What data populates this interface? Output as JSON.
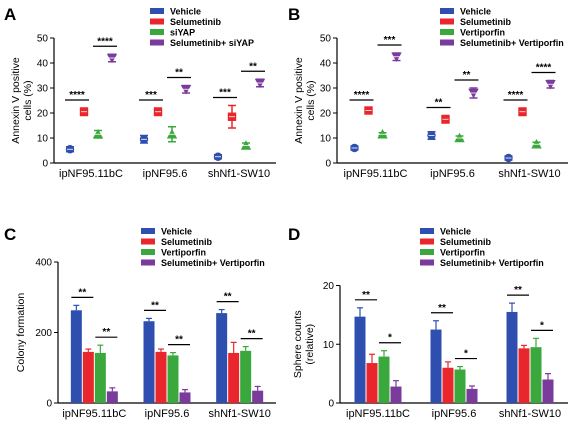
{
  "colors": {
    "Vehicle": "#2e4fb0",
    "Selumetinib": "#e8262c",
    "siYAP": "#3aa83c",
    "Vertiporfin": "#3aa83c",
    "Selumetinib+ siYAP": "#7a3b9c",
    "Selumetinib+ Vertiporfin": "#7a3b9c"
  },
  "chart_data": [
    {
      "panel": "A",
      "type": "scatter",
      "ylabel": "Annexin V positive cells (%)",
      "yticks": [
        0,
        10,
        20,
        30,
        40,
        50
      ],
      "ylim": [
        0,
        50
      ],
      "categories": [
        "ipNF95.11bC",
        "ipNF95.6",
        "shNf1-SW10"
      ],
      "legend": {
        "placement": "top",
        "entries": [
          "Vehicle",
          "Selumetinib",
          "siYAP",
          "Selumetinib+ siYAP"
        ]
      },
      "series": [
        {
          "name": "Vehicle",
          "marker": "circle",
          "values": [
            5.5,
            9.5,
            2.5
          ],
          "err": [
            1.0,
            1.5,
            0.8
          ]
        },
        {
          "name": "Selumetinib",
          "marker": "square",
          "values": [
            20.5,
            20.5,
            18.5
          ],
          "err": [
            1.5,
            1.5,
            4.5
          ]
        },
        {
          "name": "siYAP",
          "marker": "triangle-up",
          "values": [
            11.5,
            11.5,
            7.0
          ],
          "err": [
            1.5,
            3.0,
            1.0
          ]
        },
        {
          "name": "Selumetinib+ siYAP",
          "marker": "triangle-down",
          "values": [
            42.0,
            29.5,
            32.0
          ],
          "err": [
            1.5,
            1.5,
            1.5
          ]
        }
      ],
      "significance": [
        {
          "cat": 0,
          "pair": [
            0,
            1
          ],
          "label": "****"
        },
        {
          "cat": 0,
          "pair": [
            2,
            3
          ],
          "label": "****"
        },
        {
          "cat": 1,
          "pair": [
            0,
            1
          ],
          "label": "***"
        },
        {
          "cat": 1,
          "pair": [
            2,
            3
          ],
          "label": "**"
        },
        {
          "cat": 2,
          "pair": [
            0,
            1
          ],
          "label": "***"
        },
        {
          "cat": 2,
          "pair": [
            2,
            3
          ],
          "label": "**"
        }
      ]
    },
    {
      "panel": "B",
      "type": "scatter",
      "ylabel": "Annexin V positive cells (%)",
      "yticks": [
        0,
        10,
        20,
        30,
        40,
        50
      ],
      "ylim": [
        0,
        50
      ],
      "categories": [
        "ipNF95.11bC",
        "ipNF95.6",
        "shNf1-SW10"
      ],
      "legend": {
        "placement": "top",
        "entries": [
          "Vehicle",
          "Selumetinib",
          "Vertiporfin",
          "Selumetinib+ Vertiporfin"
        ]
      },
      "series": [
        {
          "name": "Vehicle",
          "marker": "circle",
          "values": [
            6.0,
            11.0,
            2.0
          ],
          "err": [
            0.8,
            1.5,
            0.8
          ]
        },
        {
          "name": "Selumetinib",
          "marker": "square",
          "values": [
            21.0,
            17.5,
            20.5
          ],
          "err": [
            1.0,
            1.5,
            1.5
          ]
        },
        {
          "name": "Vertiporfin",
          "marker": "triangle-up",
          "values": [
            11.5,
            10.0,
            7.5
          ],
          "err": [
            0.6,
            0.8,
            0.8
          ]
        },
        {
          "name": "Selumetinib+ Vertiporfin",
          "marker": "triangle-down",
          "values": [
            42.5,
            28.0,
            31.5
          ],
          "err": [
            1.5,
            2.0,
            1.5
          ]
        }
      ],
      "significance": [
        {
          "cat": 0,
          "pair": [
            0,
            1
          ],
          "label": "****"
        },
        {
          "cat": 0,
          "pair": [
            2,
            3
          ],
          "label": "***"
        },
        {
          "cat": 1,
          "pair": [
            0,
            1
          ],
          "label": "**"
        },
        {
          "cat": 1,
          "pair": [
            2,
            3
          ],
          "label": "**"
        },
        {
          "cat": 2,
          "pair": [
            0,
            1
          ],
          "label": "****"
        },
        {
          "cat": 2,
          "pair": [
            2,
            3
          ],
          "label": "****"
        }
      ]
    },
    {
      "panel": "C",
      "type": "bar",
      "ylabel": "Colony formation",
      "yticks": [
        0,
        200,
        400
      ],
      "ylim": [
        0,
        400
      ],
      "categories": [
        "ipNF95.11bC",
        "ipNF95.6",
        "shNf1-SW10"
      ],
      "legend": {
        "placement": "top",
        "entries": [
          "Vehicle",
          "Selumetinib",
          "Vertiporfin",
          "Selumetinib+ Vertiporfin"
        ]
      },
      "series": [
        {
          "name": "Vehicle",
          "values": [
            263,
            232,
            255
          ],
          "err": [
            14,
            8,
            10
          ]
        },
        {
          "name": "Selumetinib",
          "values": [
            145,
            145,
            142
          ],
          "err": [
            8,
            8,
            30
          ]
        },
        {
          "name": "Vertiporfin",
          "values": [
            142,
            135,
            148
          ],
          "err": [
            22,
            8,
            12
          ]
        },
        {
          "name": "Selumetinib+ Vertiporfin",
          "values": [
            33,
            30,
            35
          ],
          "err": [
            10,
            8,
            12
          ]
        }
      ],
      "significance": [
        {
          "cat": 0,
          "pair": [
            0,
            1
          ],
          "label": "**"
        },
        {
          "cat": 0,
          "pair": [
            2,
            3
          ],
          "label": "**"
        },
        {
          "cat": 1,
          "pair": [
            0,
            1
          ],
          "label": "**"
        },
        {
          "cat": 1,
          "pair": [
            2,
            3
          ],
          "label": "**"
        },
        {
          "cat": 2,
          "pair": [
            0,
            1
          ],
          "label": "**"
        },
        {
          "cat": 2,
          "pair": [
            2,
            3
          ],
          "label": "**"
        }
      ]
    },
    {
      "panel": "D",
      "type": "bar",
      "ylabel": "Sphere counts (relative)",
      "yticks": [
        0,
        10,
        20
      ],
      "ylim": [
        0,
        24
      ],
      "categories": [
        "ipNF95.11bC",
        "ipNF95.6",
        "shNf1-SW10"
      ],
      "legend": {
        "placement": "top",
        "entries": [
          "Vehicle",
          "Selumetinib",
          "Vertiporfin",
          "Selumetinib+ Vertiporfin"
        ]
      },
      "series": [
        {
          "name": "Vehicle",
          "values": [
            14.7,
            12.5,
            15.5
          ],
          "err": [
            1.5,
            1.5,
            1.5
          ]
        },
        {
          "name": "Selumetinib",
          "values": [
            6.8,
            6.0,
            9.3
          ],
          "err": [
            1.5,
            1.0,
            0.5
          ]
        },
        {
          "name": "Vertiporfin",
          "values": [
            7.9,
            5.7,
            9.5
          ],
          "err": [
            1.0,
            0.5,
            1.5
          ]
        },
        {
          "name": "Selumetinib+ Vertiporfin",
          "values": [
            2.8,
            2.4,
            4.0
          ],
          "err": [
            1.0,
            0.5,
            1.0
          ]
        }
      ],
      "significance": [
        {
          "cat": 0,
          "pair": [
            0,
            1
          ],
          "label": "**"
        },
        {
          "cat": 0,
          "pair": [
            2,
            3
          ],
          "label": "*"
        },
        {
          "cat": 1,
          "pair": [
            0,
            1
          ],
          "label": "**"
        },
        {
          "cat": 1,
          "pair": [
            2,
            3
          ],
          "label": "*"
        },
        {
          "cat": 2,
          "pair": [
            0,
            1
          ],
          "label": "**"
        },
        {
          "cat": 2,
          "pair": [
            2,
            3
          ],
          "label": "*"
        }
      ]
    }
  ]
}
